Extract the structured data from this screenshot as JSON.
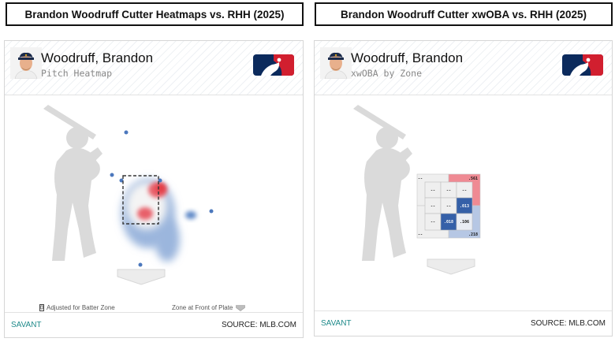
{
  "left_panel": {
    "title": "Brandon Woodruff Cutter Heatmaps vs. RHH (2025)",
    "player_name": "Woodruff, Brandon",
    "subtitle": "Pitch Heatmap",
    "note_left": "Adjusted for Batter Zone",
    "note_right": "Zone at Front of Plate",
    "footer_left": "SAVANT",
    "footer_right": "SOURCE: MLB.COM"
  },
  "right_panel": {
    "title": "Brandon Woodruff Cutter xwOBA vs. RHH (2025)",
    "player_name": "Woodruff, Brandon",
    "subtitle": "xwOBA by Zone",
    "footer_left": "SAVANT",
    "footer_right": "SOURCE: MLB.COM",
    "zones": {
      "outer_tl": "--",
      "outer_tr": ".561",
      "outer_bl": "--",
      "outer_br": ".218",
      "inner": [
        [
          "--",
          "--",
          "--"
        ],
        [
          "--",
          "--",
          ".013"
        ],
        [
          "--",
          ".018",
          ".106"
        ]
      ]
    }
  },
  "colors": {
    "savant": "#1f8a8a",
    "hot": "#e8606a",
    "cold": "#4c78bd",
    "silhouette": "#d9d9d9"
  },
  "icons": {
    "avatar": "player-headshot-icon",
    "logo": "mlb-logo-icon",
    "adjusted": "batter-zone-icon",
    "plate": "home-plate-icon"
  }
}
